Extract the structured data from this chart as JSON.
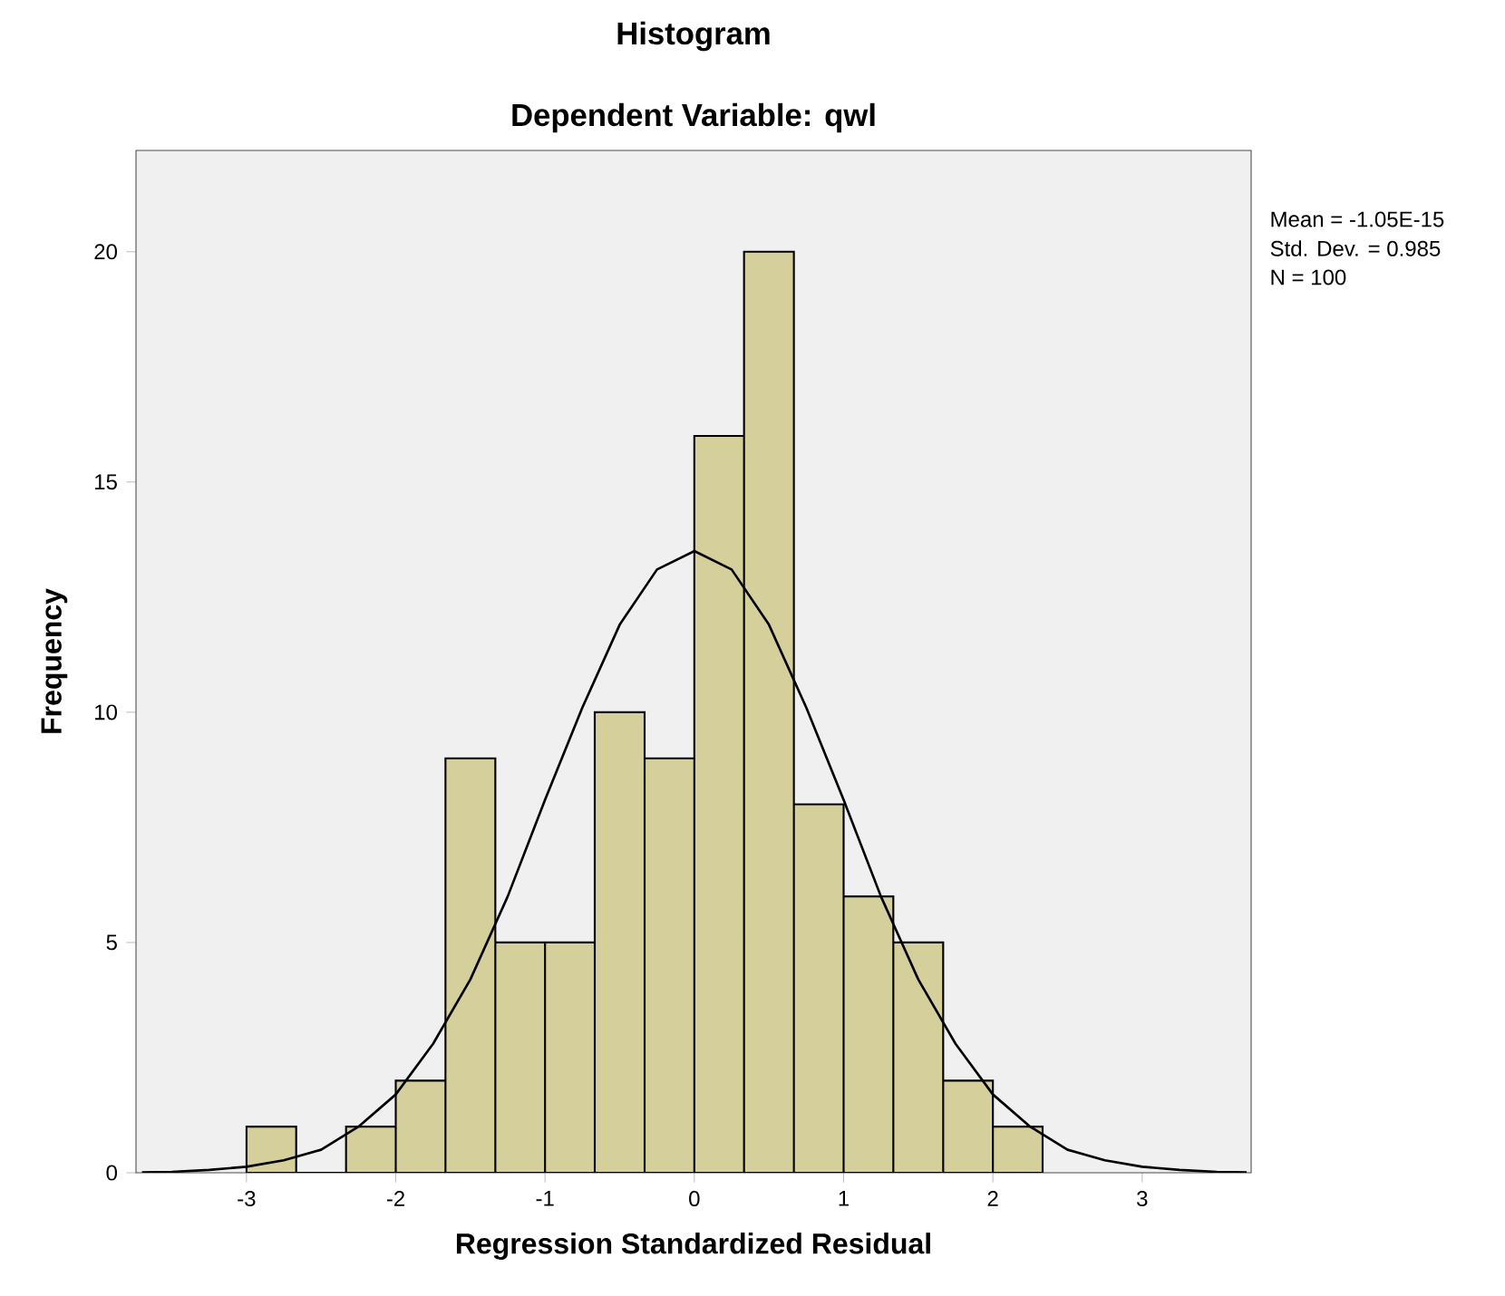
{
  "chart_data": {
    "type": "histogram",
    "title": "Histogram",
    "subtitle": "Dependent Variable: qwl",
    "xlabel": "Regression Standardized Residual",
    "ylabel": "Frequency",
    "bins": [
      -3,
      -2.667,
      -2.333,
      -2,
      -1.667,
      -1.333,
      -1,
      -0.667,
      -0.333,
      0,
      0.333,
      0.667,
      1,
      1.333,
      1.667,
      2,
      2.333
    ],
    "values": [
      1,
      0,
      1,
      2,
      9,
      5,
      5,
      10,
      9,
      16,
      20,
      8,
      6,
      5,
      2,
      1
    ],
    "color": "#d5d09b",
    "series": [
      {
        "type": "line",
        "color": "#000000",
        "x": [
          -3.7,
          -3.5,
          -3.25,
          -3,
          -2.75,
          -2.5,
          -2.25,
          -2,
          -1.75,
          -1.5,
          -1.25,
          -1,
          -0.75,
          -0.5,
          -0.25,
          0,
          0.25,
          0.5,
          0.75,
          1,
          1.25,
          1.5,
          1.75,
          2,
          2.25,
          2.5,
          2.75,
          3,
          3.25,
          3.5,
          3.7
        ],
        "values": [
          0.01,
          0.02,
          0.06,
          0.13,
          0.27,
          0.5,
          1.0,
          1.7,
          2.8,
          4.2,
          6.0,
          8.1,
          10.1,
          11.9,
          13.1,
          13.5,
          13.1,
          11.9,
          10.1,
          8.1,
          6.0,
          4.2,
          2.8,
          1.7,
          1.0,
          0.5,
          0.27,
          0.13,
          0.06,
          0.02,
          0.01
        ]
      }
    ],
    "xlim": [
      -3.74,
      3.73
    ],
    "ylim": [
      0,
      22.2
    ],
    "xticks": [
      -3,
      -2,
      -1,
      0,
      1,
      2,
      3
    ],
    "yticks": [
      0,
      5,
      10,
      15,
      20
    ],
    "annotations": [
      "Mean = -1.05E-15",
      "Std. Dev. = 0.985",
      "N = 100"
    ]
  }
}
